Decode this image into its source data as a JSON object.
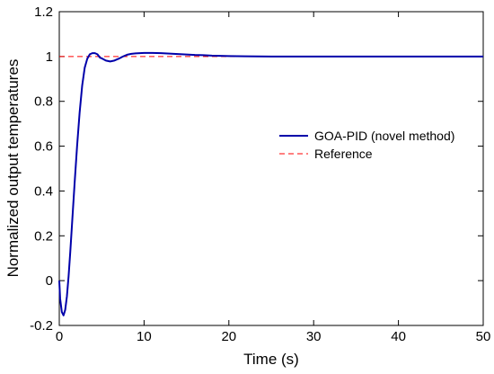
{
  "chart_data": {
    "type": "line",
    "xlabel": "Time (s)",
    "ylabel": "Normalized output temperatures",
    "xlim": [
      0,
      50
    ],
    "ylim": [
      -0.2,
      1.2
    ],
    "xticks": [
      0,
      10,
      20,
      30,
      40,
      50
    ],
    "yticks": [
      -0.2,
      0,
      0.2,
      0.4,
      0.6,
      0.8,
      1,
      1.2
    ],
    "xtick_labels": [
      "0",
      "10",
      "20",
      "30",
      "40",
      "50"
    ],
    "ytick_labels": [
      "-0.2",
      "0",
      "0.2",
      "0.4",
      "0.6",
      "0.8",
      "1",
      "1.2"
    ],
    "grid": false,
    "legend": {
      "position": "right-middle"
    },
    "series": [
      {
        "name": "GOA-PID (novel method)",
        "style": "solid",
        "color": "#0000aa",
        "x": [
          0,
          0.1,
          0.3,
          0.5,
          0.7,
          0.9,
          1.1,
          1.3,
          1.5,
          1.8,
          2.1,
          2.4,
          2.7,
          3.0,
          3.3,
          3.6,
          3.9,
          4.2,
          4.5,
          4.8,
          5.1,
          5.5,
          6.0,
          6.5,
          7.0,
          7.5,
          8.0,
          8.5,
          9.0,
          9.5,
          10.0,
          11.0,
          12.0,
          13.0,
          14.0,
          15.0,
          16.0,
          17.0,
          18.0,
          19.0,
          20.0,
          22.0,
          25.0,
          30.0,
          40.0,
          50.0
        ],
        "y": [
          0,
          -0.08,
          -0.14,
          -0.155,
          -0.13,
          -0.07,
          0.02,
          0.13,
          0.25,
          0.43,
          0.6,
          0.75,
          0.87,
          0.95,
          0.99,
          1.01,
          1.015,
          1.015,
          1.01,
          0.995,
          0.99,
          0.982,
          0.978,
          0.982,
          0.99,
          1.0,
          1.008,
          1.012,
          1.014,
          1.015,
          1.016,
          1.016,
          1.015,
          1.013,
          1.011,
          1.009,
          1.007,
          1.006,
          1.004,
          1.003,
          1.002,
          1.001,
          1.0,
          1.0,
          1.0,
          1.0
        ]
      },
      {
        "name": "Reference",
        "style": "dashed",
        "color": "#ff0000",
        "x": [
          0,
          50
        ],
        "y": [
          1,
          1
        ]
      }
    ]
  }
}
